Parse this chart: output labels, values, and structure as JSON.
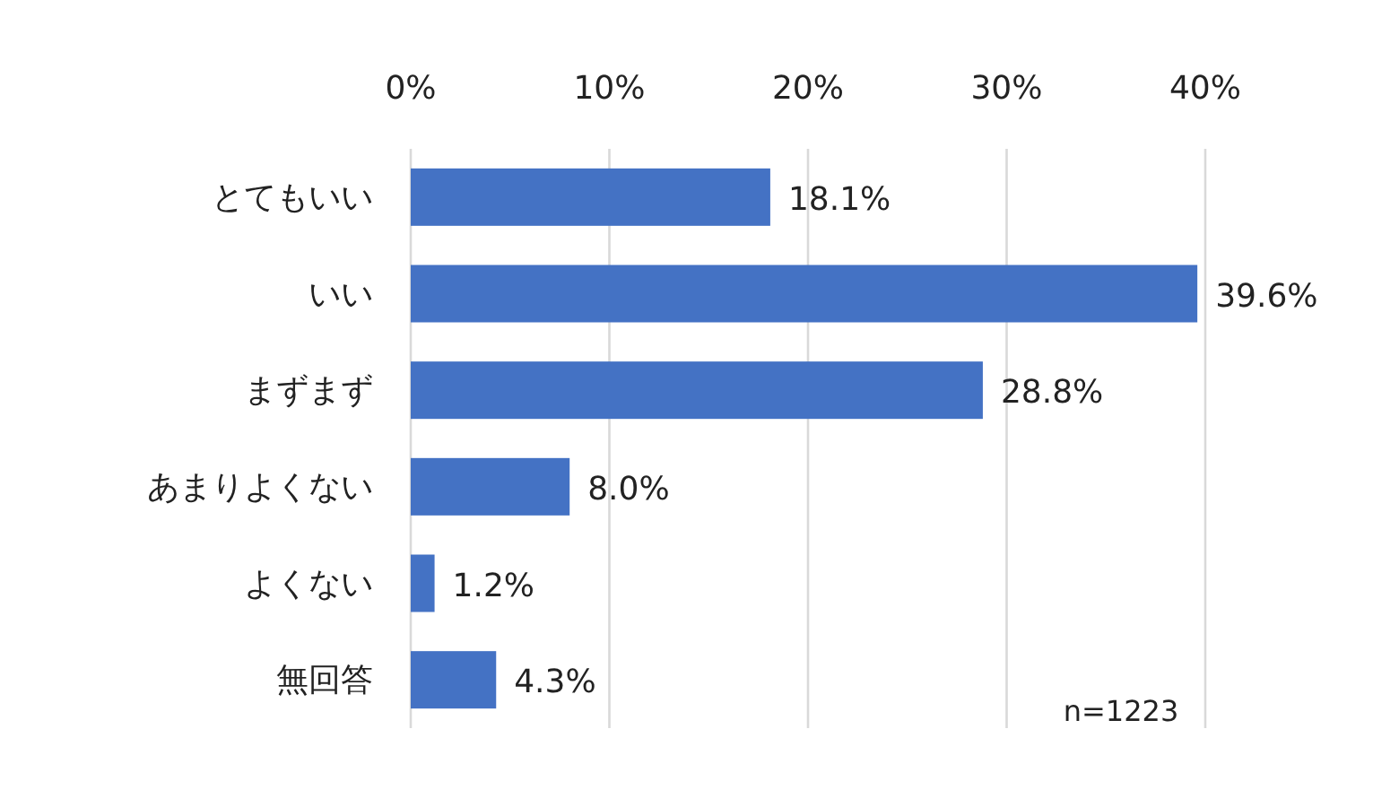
{
  "chart_data": {
    "type": "bar",
    "orientation": "horizontal",
    "categories": [
      "とてもいい",
      "いい",
      "まずまず",
      "あまりよくない",
      "よくない",
      "無回答"
    ],
    "values": [
      18.1,
      39.6,
      28.8,
      8.0,
      1.2,
      4.3
    ],
    "value_labels": [
      "18.1%",
      "39.6%",
      "28.8%",
      "8.0%",
      "1.2%",
      "4.3%"
    ],
    "color": "#4472c4",
    "xlim": [
      0,
      40
    ],
    "xticks": [
      {
        "value": 0,
        "label": "0%"
      },
      {
        "value": 10,
        "label": "10%"
      },
      {
        "value": 20,
        "label": "20%"
      },
      {
        "value": 30,
        "label": "30%"
      },
      {
        "value": 40,
        "label": "40%"
      }
    ],
    "grid": "x",
    "annotations": [
      "n=1223"
    ]
  }
}
